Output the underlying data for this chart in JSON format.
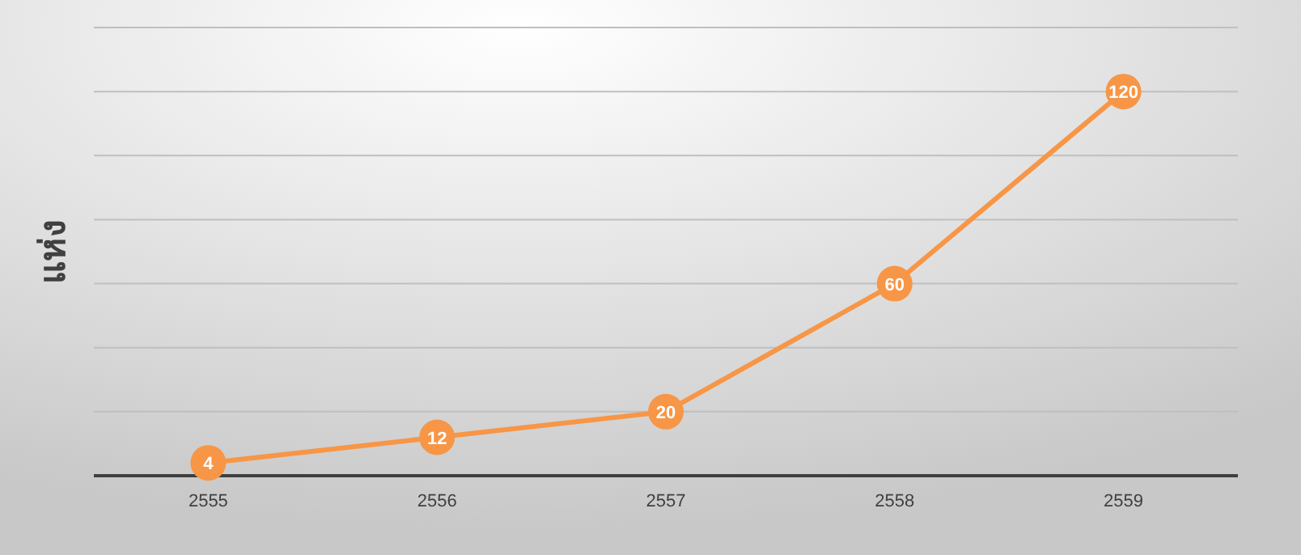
{
  "chart_data": {
    "type": "line",
    "ylabel": "แห่ง",
    "categories": [
      "2555",
      "2556",
      "2557",
      "2558",
      "2559"
    ],
    "series": [
      {
        "color": "#f79646",
        "values": [
          4,
          12,
          20,
          60,
          120
        ]
      }
    ],
    "ylim": [
      0,
      140
    ],
    "yticks": [
      {
        "value": 0,
        "label": null
      },
      {
        "value": 20,
        "label": null
      },
      {
        "value": 40,
        "label": null
      },
      {
        "value": 60,
        "label": null
      },
      {
        "value": 80,
        "label": null
      },
      {
        "value": 100,
        "label": null
      },
      {
        "value": 120,
        "label": null
      },
      {
        "value": 140,
        "label": null
      }
    ],
    "tick_labels": "x",
    "grid": "y",
    "marker": "circle",
    "line_style": "solid",
    "data_labels": true
  }
}
